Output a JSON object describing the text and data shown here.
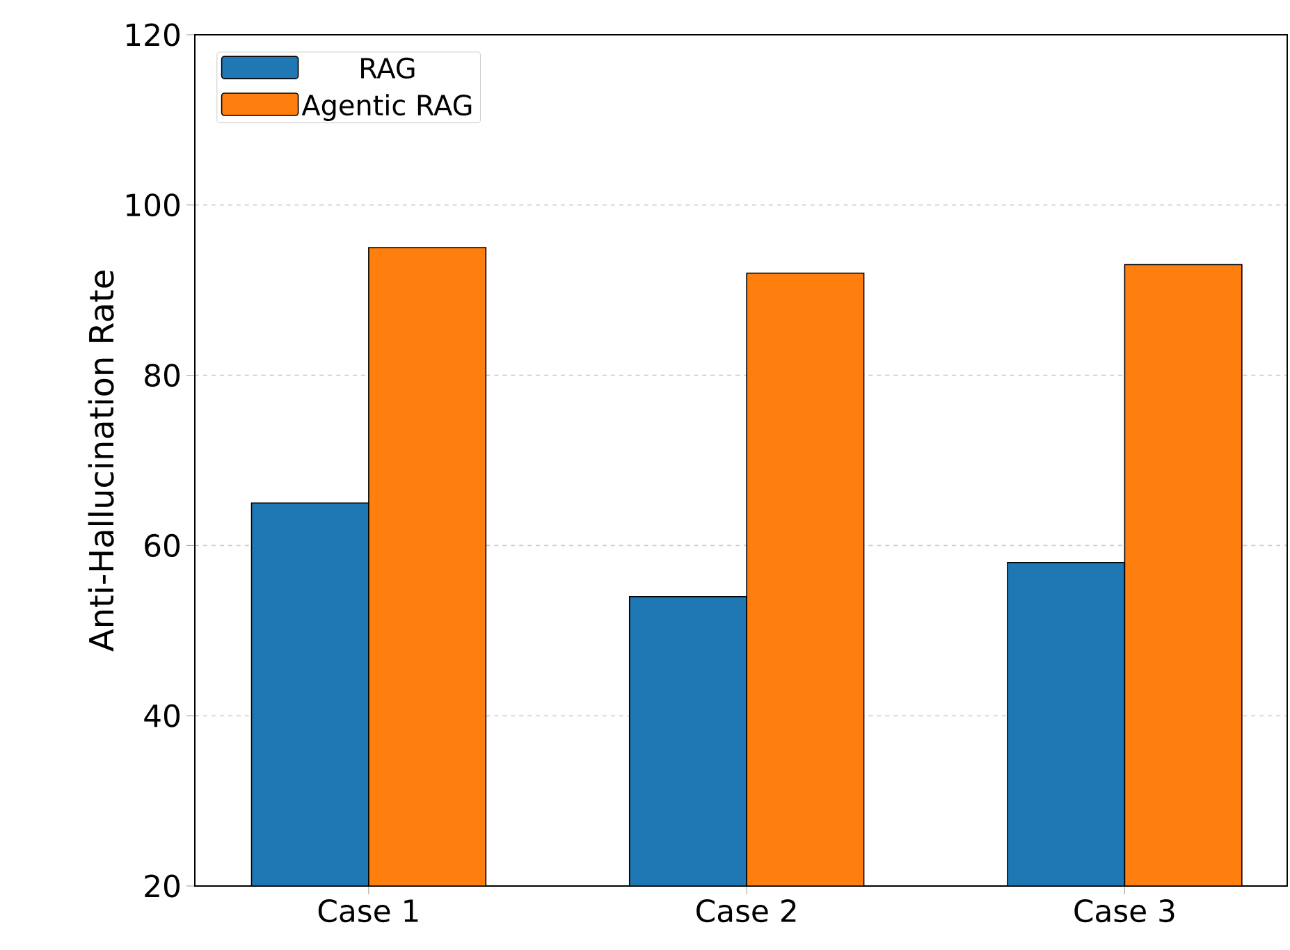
{
  "chart_data": {
    "type": "bar",
    "ylabel": "Anti-Hallucination Rate",
    "categories": [
      "Case 1",
      "Case 2",
      "Case 3"
    ],
    "series": [
      {
        "name": "RAG",
        "color": "#1f77b4",
        "values": [
          65,
          54,
          58
        ]
      },
      {
        "name": "Agentic RAG",
        "color": "#ff7f0e",
        "values": [
          95,
          92,
          93
        ]
      }
    ],
    "ylim": [
      20,
      120
    ],
    "yticks": [
      20,
      40,
      60,
      80,
      100,
      120
    ],
    "grid": "y",
    "legend": "top left"
  }
}
